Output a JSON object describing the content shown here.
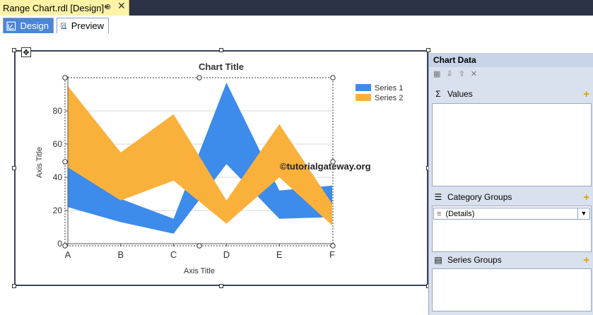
{
  "window": {
    "doc_tab_title": "Range Chart.rdl [Design]*",
    "pin_label": "⊕",
    "close_label": "✕"
  },
  "view_tabs": [
    {
      "label": "Design",
      "active": true
    },
    {
      "label": "Preview",
      "active": false
    }
  ],
  "chart": {
    "title": "Chart Title",
    "x_axis_title": "Axis Title",
    "y_axis_title": "Axis Title",
    "watermark": "©tutorialgateway.org",
    "legend": [
      {
        "name": "Series 1",
        "color": "#3d8bea"
      },
      {
        "name": "Series 2",
        "color": "#fab13b"
      }
    ]
  },
  "chart_data": {
    "type": "area",
    "subtype": "range",
    "title": "Chart Title",
    "xlabel": "Axis Title",
    "ylabel": "Axis Title",
    "categories": [
      "A",
      "B",
      "C",
      "D",
      "E",
      "F"
    ],
    "ylim": [
      0,
      100
    ],
    "yticks": [
      0,
      20,
      40,
      60,
      80
    ],
    "grid": true,
    "legend_position": "top-right",
    "series": [
      {
        "name": "Series 1",
        "color": "#3d8bea",
        "low": [
          22,
          13,
          6,
          48,
          15,
          16
        ],
        "high": [
          46,
          27,
          15,
          97,
          32,
          35
        ]
      },
      {
        "name": "Series 2",
        "color": "#fab13b",
        "low": [
          46,
          26,
          38,
          12,
          40,
          11
        ],
        "high": [
          95,
          55,
          78,
          26,
          72,
          24
        ]
      }
    ]
  },
  "chart_data_panel": {
    "title": "Chart Data",
    "values_label": "Values",
    "category_groups_label": "Category Groups",
    "details_label": "(Details)",
    "series_groups_label": "Series Groups"
  }
}
